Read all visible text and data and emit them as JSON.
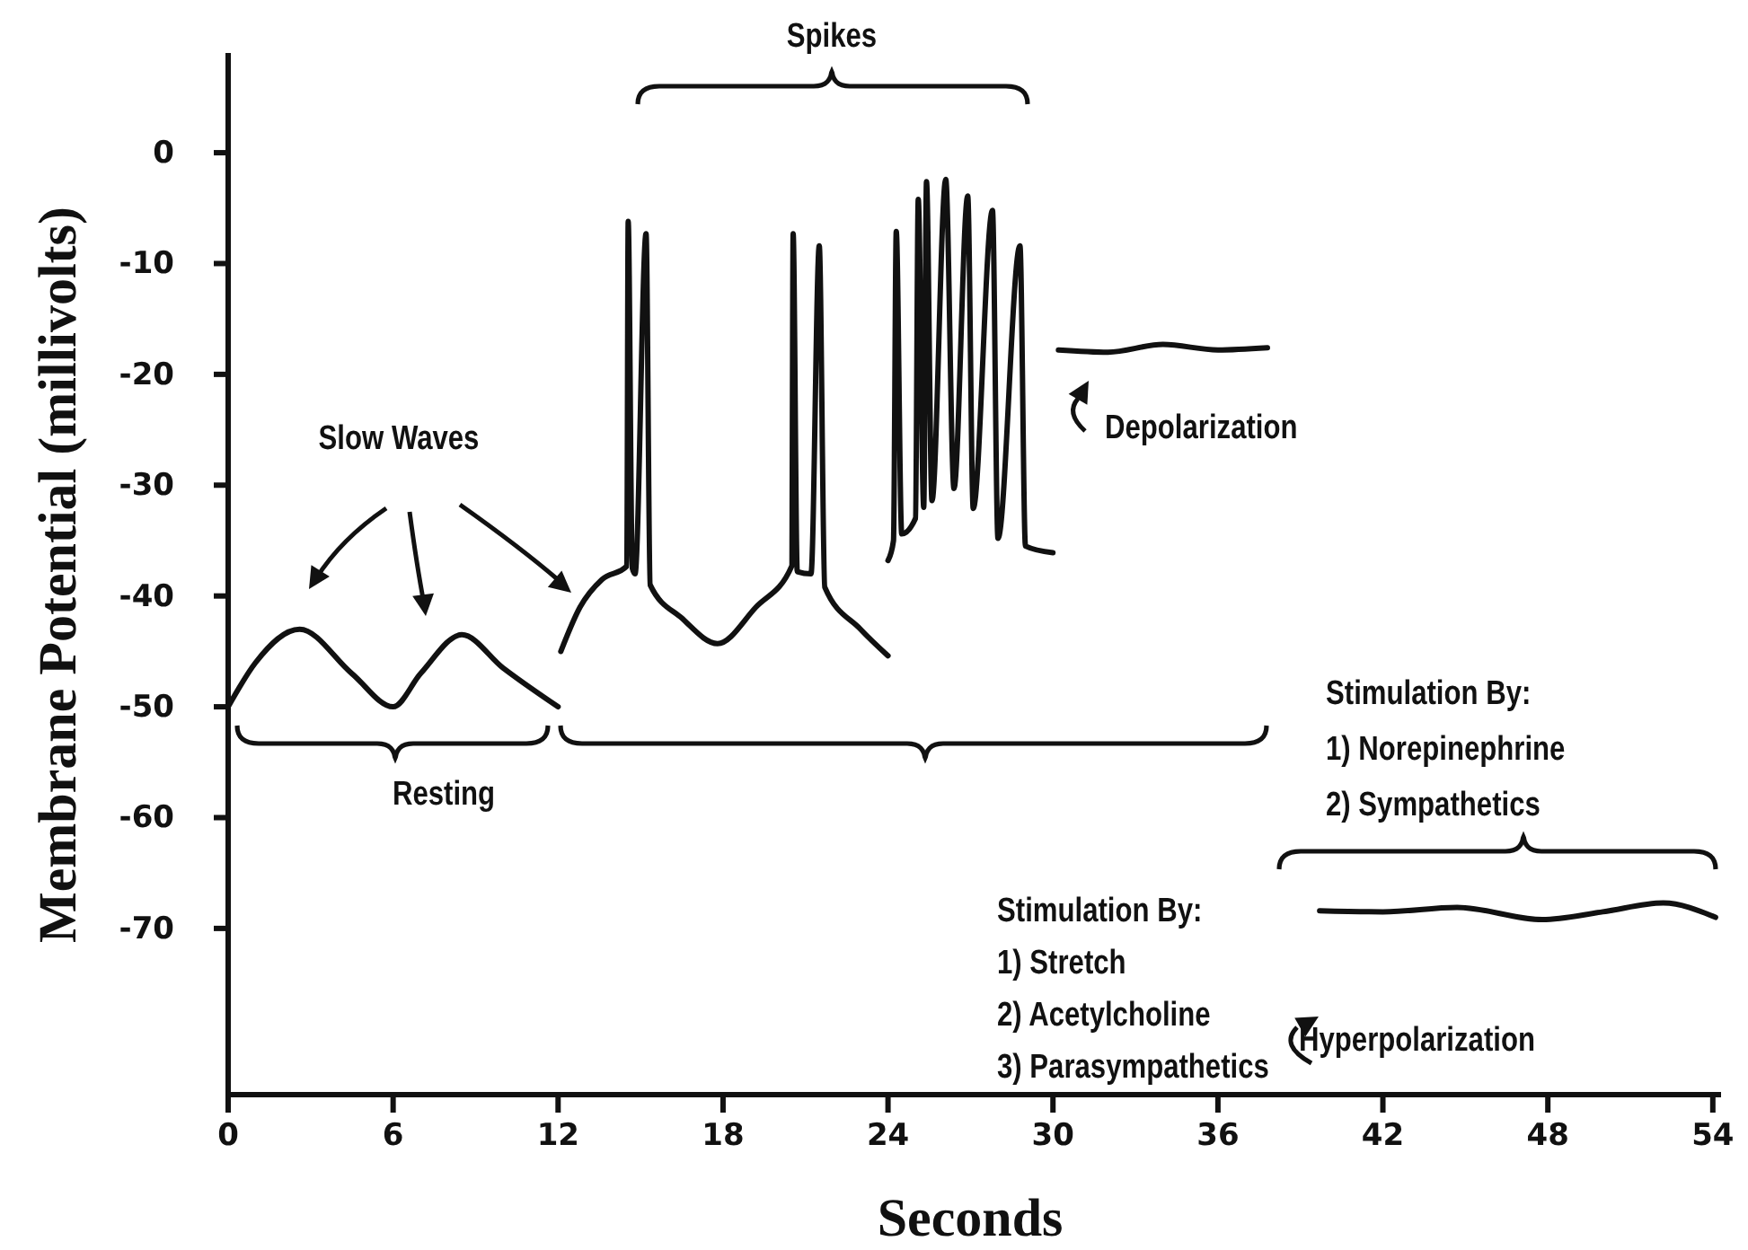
{
  "chart_data": {
    "type": "line",
    "xlabel": "Seconds",
    "ylabel": "Membrane Potential (millivolts)",
    "xlim": [
      0,
      54.3
    ],
    "ylim": [
      -85,
      9
    ],
    "xticks": [
      0,
      6,
      12,
      18,
      24,
      30,
      36,
      42,
      48,
      54
    ],
    "yticks": [
      0,
      -10,
      -20,
      -30,
      -40,
      -50,
      -60,
      -70
    ],
    "grid": false,
    "marker": "none",
    "line_style": "solid",
    "series": [
      {
        "color": "#111111",
        "x": [
          0,
          1,
          2.6,
          4.5,
          6,
          7,
          8.5,
          10,
          12
        ],
        "values": [
          -50,
          -46,
          -43,
          -47,
          -50,
          -47,
          -43.5,
          -46.5,
          -50
        ]
      },
      {
        "color": "#111111",
        "x": [
          12.1,
          12.8,
          13.6,
          14.5,
          14.55,
          14.7,
          14.8,
          15.2,
          15.35,
          16.5,
          17.8,
          19.2,
          20.5,
          20.55,
          20.7,
          21.2,
          21.5,
          21.7,
          23,
          24
        ],
        "values": [
          -45,
          -41,
          -38.5,
          -37.3,
          -6.2,
          -37.5,
          -38,
          -7.3,
          -39,
          -42,
          -44.3,
          -41,
          -37.3,
          -7.3,
          -37.8,
          -38,
          -8.4,
          -39.2,
          -43,
          -45.4
        ]
      },
      {
        "color": "#111111",
        "x": [
          24,
          24.2,
          24.3,
          24.5,
          25,
          25.1,
          25.3,
          25.4,
          25.6,
          26.1,
          26.4,
          26.9,
          27.1,
          27.8,
          28,
          28.8,
          29,
          30
        ],
        "values": [
          -36.8,
          -35,
          -7.1,
          -34.4,
          -33,
          -4.2,
          -32,
          -2.6,
          -31.4,
          -2.4,
          -30.3,
          -3.9,
          -32.1,
          -5.2,
          -34.8,
          -8.4,
          -35.5,
          -36.1
        ]
      },
      {
        "color": "#111111",
        "x": [
          30.2,
          32,
          34,
          36,
          37.8
        ],
        "values": [
          -17.8,
          -18,
          -17.3,
          -17.8,
          -17.6
        ]
      },
      {
        "color": "#111111",
        "x": [
          39.7,
          42,
          44.7,
          47.8,
          50,
          52.2,
          54.1
        ],
        "values": [
          -68.4,
          -68.5,
          -68.1,
          -69.2,
          -68.5,
          -67.7,
          -69
        ]
      }
    ],
    "annotations": [
      "Slow Waves",
      "Spikes",
      "Depolarization",
      "Resting",
      "Stimulation By:\n1) Stretch\n2) Acetylcholine\n3) Parasympathetics",
      "Stimulation By:\n1) Norepinephrine\n2) Sympathetics",
      "Hyperpolarization"
    ]
  }
}
